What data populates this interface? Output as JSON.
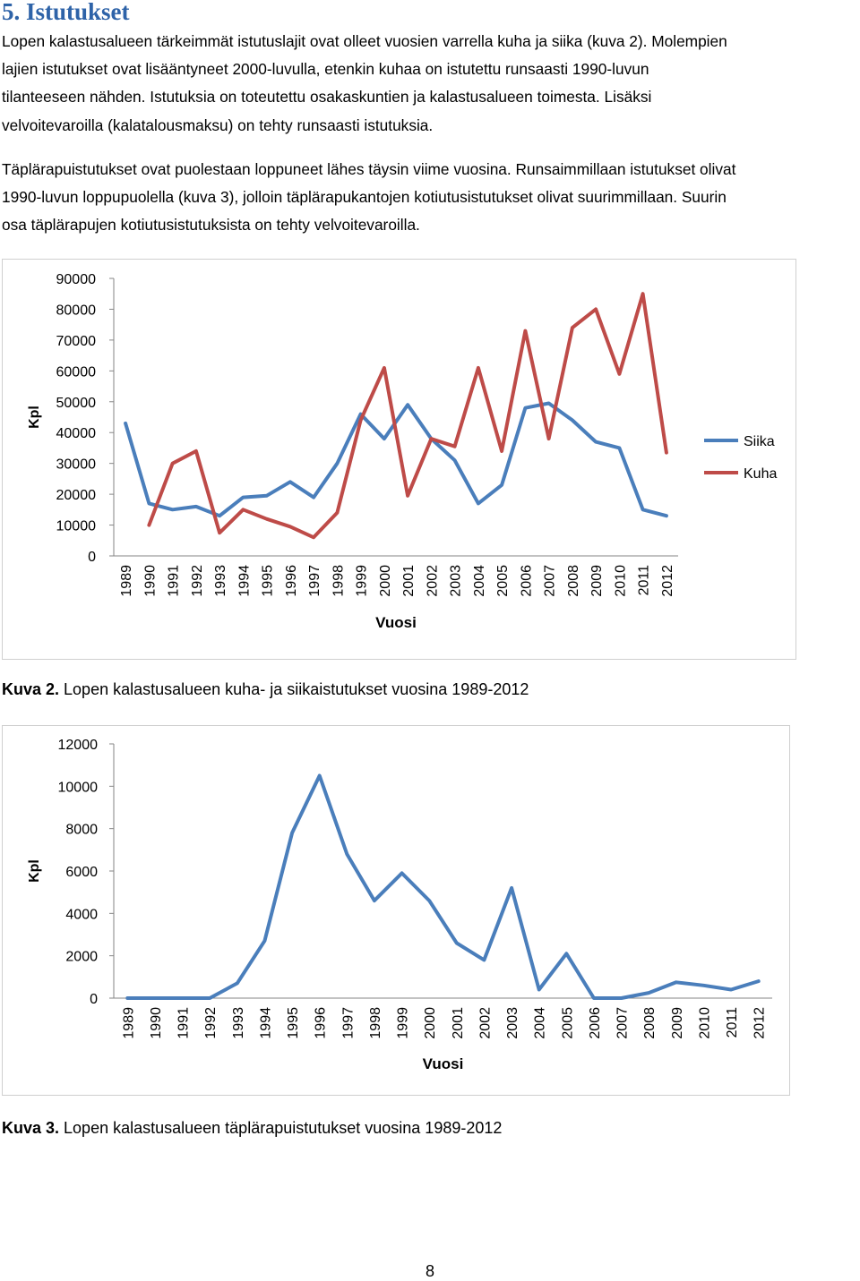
{
  "section": {
    "heading": "5. Istutukset",
    "paragraphs": [
      [
        "Lopen kalastusalueen tärkeimmät istutuslajit ovat olleet vuosien varrella kuha ja siika (kuva 2). Molempien",
        "lajien istutukset ovat lisääntyneet 2000-luvulla, etenkin kuhaa on istutettu runsaasti 1990-luvun",
        "tilanteeseen nähden. Istutuksia on toteutettu osakaskuntien ja kalastusalueen toimesta. Lisäksi",
        "velvoitevaroilla (kalatalousmaksu) on tehty runsaasti istutuksia."
      ],
      [
        "Täplärapuistutukset ovat puolestaan loppuneet lähes täysin viime vuosina. Runsaimmillaan istutukset olivat",
        "1990-luvun loppupuolella (kuva 3), jolloin täplärapukantojen kotiutusistutukset olivat suurimmillaan. Suurin",
        "osa täplärapujen kotiutusistutuksista on tehty velvoitevaroilla."
      ]
    ]
  },
  "figures": {
    "fig1": {
      "caption_bold": "Kuva 2.",
      "caption_text": " Lopen kalastusalueen kuha- ja siikaistutukset vuosina 1989-2012"
    },
    "fig2": {
      "caption_bold": "Kuva 3.",
      "caption_text": " Lopen kalastusalueen täplärapuistutukset vuosina 1989-2012"
    }
  },
  "page_number": "8",
  "colors": {
    "siika": "#4a7ebb",
    "kuha": "#be4b48",
    "heading": "#2e63a8"
  },
  "chart_data": [
    {
      "type": "line",
      "ylabel": "Kpl",
      "xlabel": "Vuosi",
      "ylim": [
        0,
        90000
      ],
      "yticks": [
        "0",
        "10000",
        "20000",
        "30000",
        "40000",
        "50000",
        "60000",
        "70000",
        "80000",
        "90000"
      ],
      "legend_position": "right",
      "x": [
        "1989",
        "1990",
        "1991",
        "1992",
        "1993",
        "1994",
        "1995",
        "1996",
        "1997",
        "1998",
        "1999",
        "2000",
        "2001",
        "2002",
        "2003",
        "2004",
        "2005",
        "2006",
        "2007",
        "2008",
        "2009",
        "2010",
        "2011",
        "2012"
      ],
      "series": [
        {
          "name": "Siika",
          "color": "#4a7ebb",
          "values": [
            43000,
            17000,
            15000,
            16000,
            13000,
            19000,
            19500,
            24000,
            19000,
            30000,
            46000,
            38000,
            49000,
            38000,
            31000,
            17000,
            23000,
            48000,
            49500,
            44000,
            37000,
            35000,
            15000,
            13000
          ]
        },
        {
          "name": "Kuha",
          "color": "#be4b48",
          "values": [
            null,
            10000,
            30000,
            34000,
            7500,
            15000,
            12000,
            9500,
            6000,
            14000,
            44000,
            61000,
            19500,
            38000,
            35500,
            61000,
            34000,
            73000,
            38000,
            74000,
            80000,
            59000,
            85000,
            33500
          ]
        }
      ]
    },
    {
      "type": "line",
      "ylabel": "Kpl",
      "xlabel": "Vuosi",
      "ylim": [
        0,
        12000
      ],
      "yticks": [
        "0",
        "2000",
        "4000",
        "6000",
        "8000",
        "10000",
        "12000"
      ],
      "x": [
        "1989",
        "1990",
        "1991",
        "1992",
        "1993",
        "1994",
        "1995",
        "1996",
        "1997",
        "1998",
        "1999",
        "2000",
        "2001",
        "2002",
        "2003",
        "2004",
        "2005",
        "2006",
        "2007",
        "2008",
        "2009",
        "2010",
        "2011",
        "2012"
      ],
      "series": [
        {
          "color": "#4a7ebb",
          "values": [
            0,
            0,
            0,
            0,
            700,
            2700,
            7800,
            10500,
            6800,
            4600,
            5900,
            4600,
            2600,
            1800,
            5200,
            400,
            2100,
            0,
            0,
            250,
            750,
            600,
            400,
            800
          ]
        }
      ]
    }
  ]
}
